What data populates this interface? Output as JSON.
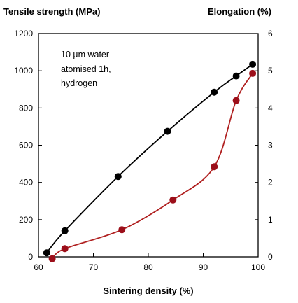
{
  "chart_data": {
    "type": "line",
    "xlabel": "Sintering density (%)",
    "ylabel_left": "Tensile strength (MPa)",
    "ylabel_right": "Elongation (%)",
    "xlim": [
      60,
      100
    ],
    "ylim_left": [
      0,
      1200
    ],
    "ylim_right": [
      0,
      6
    ],
    "x_ticks": [
      "60",
      "70",
      "80",
      "90",
      "100"
    ],
    "y_left_ticks": [
      "0",
      "200",
      "400",
      "600",
      "800",
      "1000",
      "1200"
    ],
    "y_right_ticks": [
      "0",
      "1",
      "2",
      "3",
      "4",
      "5",
      "6"
    ],
    "annotation": [
      "10 µm water",
      "atomised 1h,",
      "hydrogen"
    ],
    "grid": false,
    "series": [
      {
        "axis": "left",
        "color": "#000000",
        "marker_color": "#000000",
        "x": [
          61.5,
          64.8,
          74.5,
          83.5,
          92.0,
          96.0,
          99.0
        ],
        "y": [
          22,
          140,
          432,
          675,
          885,
          972,
          1035
        ]
      },
      {
        "axis": "right",
        "color": "#b02020",
        "marker_color": "#9c0f1a",
        "x": [
          62.5,
          64.8,
          75.2,
          84.5,
          92.0,
          96.0,
          99.0
        ],
        "y": [
          -0.05,
          0.22,
          0.73,
          1.53,
          2.42,
          4.2,
          4.93
        ]
      }
    ]
  }
}
